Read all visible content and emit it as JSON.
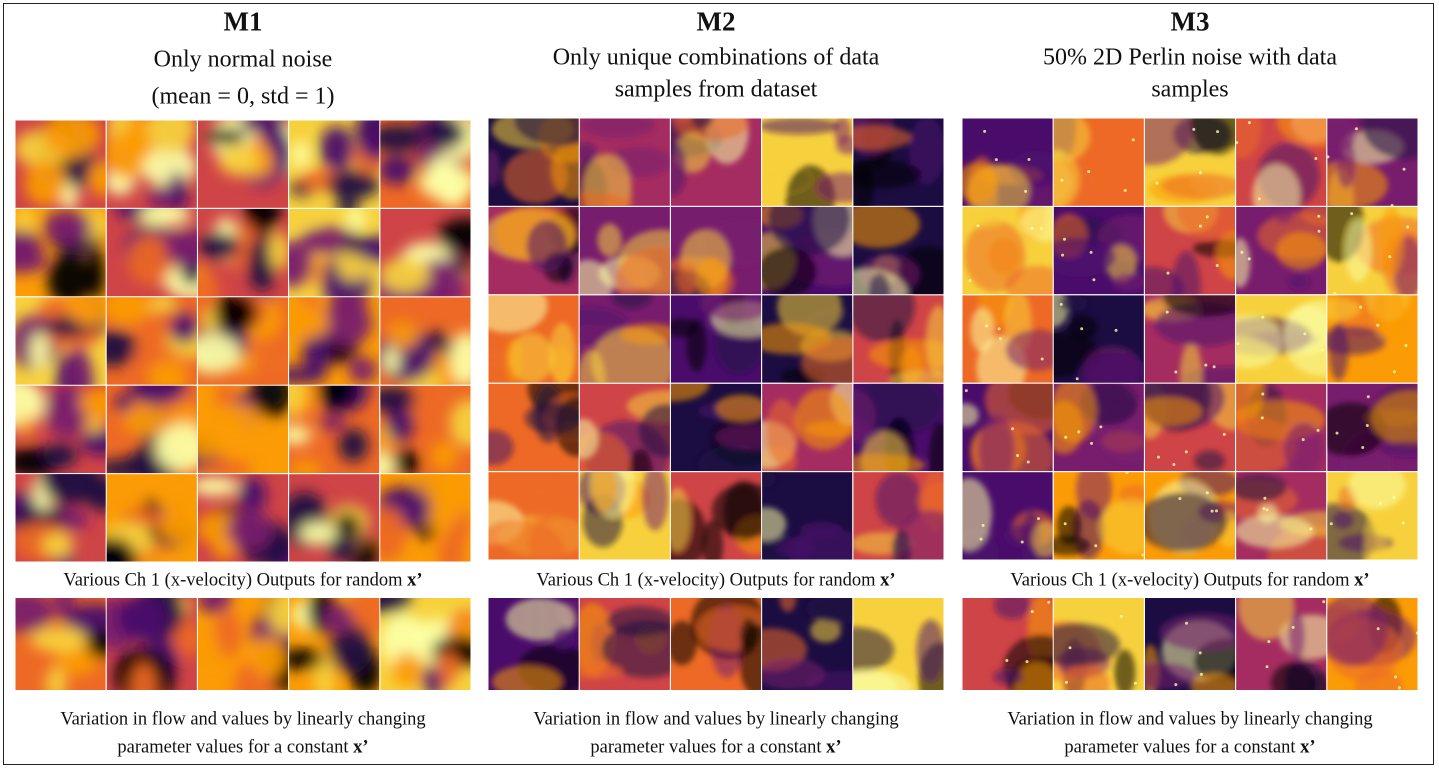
{
  "panels": [
    {
      "title": "M1",
      "subtitle": [
        "Only normal noise",
        "(mean = 0, std = 1)"
      ],
      "grid_caption": {
        "text": "Various Ch 1 (x-velocity) Outputs for random",
        "emphasis": "x’"
      },
      "variation_caption": {
        "lines": [
          "Variation in flow and values by linearly changing",
          "parameter values for a constant"
        ],
        "emphasis": "x’"
      }
    },
    {
      "title": "M2",
      "subtitle": [
        "Only unique combinations of data",
        "samples from dataset"
      ],
      "grid_caption": {
        "text": "Various Ch 1 (x-velocity) Outputs for random",
        "emphasis": "x’"
      },
      "variation_caption": {
        "lines": [
          "Variation in flow and values by linearly changing",
          "parameter values for a constant"
        ],
        "emphasis": "x’"
      }
    },
    {
      "title": "M3",
      "subtitle": [
        "50% 2D Perlin noise with data",
        "samples"
      ],
      "grid_caption": {
        "text": "Various Ch 1 (x-velocity) Outputs for random",
        "emphasis": "x’"
      },
      "variation_caption": {
        "lines": [
          "Variation in flow and values by linearly changing",
          "parameter values for a constant"
        ],
        "emphasis": "x’"
      }
    }
  ]
}
